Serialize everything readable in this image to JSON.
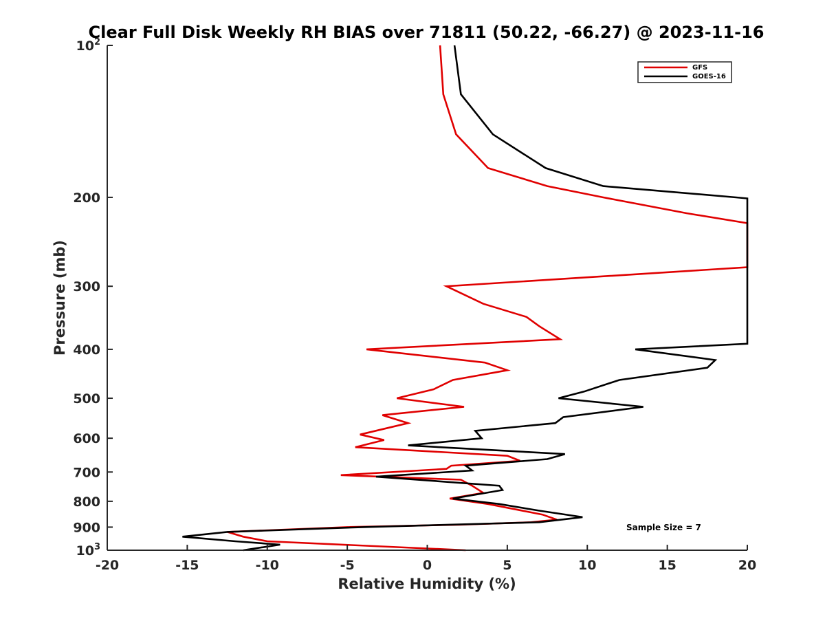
{
  "chart_data": {
    "type": "line",
    "title": "Clear Full Disk Weekly RH BIAS over 71811 (50.22, -66.27) @ 2023-11-16",
    "xlabel": "Relative Humidity (%)",
    "ylabel": "Pressure (mb)",
    "xlim": [
      -20,
      20
    ],
    "ylim": [
      100,
      1000
    ],
    "y_scale": "log",
    "y_reversed": true,
    "x_ticks": [
      -20,
      -15,
      -10,
      -5,
      0,
      5,
      10,
      15,
      20
    ],
    "x_tick_labels": [
      "-20",
      "-15",
      "-10",
      "-5",
      "0",
      "5",
      "10",
      "15",
      "20"
    ],
    "y_ticks": [
      100,
      200,
      300,
      400,
      500,
      600,
      700,
      800,
      900,
      1000
    ],
    "y_tick_labels": [
      {
        "base": "10",
        "sup": "2"
      },
      {
        "base": "200",
        "sup": ""
      },
      {
        "base": "300",
        "sup": ""
      },
      {
        "base": "400",
        "sup": ""
      },
      {
        "base": "500",
        "sup": ""
      },
      {
        "base": "600",
        "sup": ""
      },
      {
        "base": "700",
        "sup": ""
      },
      {
        "base": "800",
        "sup": ""
      },
      {
        "base": "900",
        "sup": ""
      },
      {
        "base": "10",
        "sup": "3"
      }
    ],
    "legend_position": "top-right",
    "annotation": "Sample Size = 7",
    "series": [
      {
        "name": "GFS",
        "color": "#e00000",
        "points": [
          [
            0.8,
            100
          ],
          [
            1.0,
            125
          ],
          [
            1.8,
            150
          ],
          [
            3.8,
            175
          ],
          [
            7.5,
            190
          ],
          [
            11.0,
            200
          ],
          [
            16.2,
            215
          ],
          [
            20.0,
            225
          ],
          [
            20.0,
            275
          ],
          [
            1.2,
            300
          ],
          [
            3.5,
            325
          ],
          [
            6.2,
            345
          ],
          [
            7.0,
            360
          ],
          [
            8.3,
            382
          ],
          [
            -3.8,
            400
          ],
          [
            3.6,
            425
          ],
          [
            5.0,
            440
          ],
          [
            1.6,
            460
          ],
          [
            0.4,
            480
          ],
          [
            -1.9,
            500
          ],
          [
            2.3,
            520
          ],
          [
            -2.8,
            540
          ],
          [
            -1.2,
            560
          ],
          [
            -4.2,
            590
          ],
          [
            -2.7,
            605
          ],
          [
            -4.5,
            625
          ],
          [
            5.0,
            650
          ],
          [
            5.8,
            665
          ],
          [
            1.5,
            680
          ],
          [
            1.2,
            690
          ],
          [
            -5.4,
            710
          ],
          [
            2.1,
            725
          ],
          [
            2.8,
            745
          ],
          [
            3.5,
            770
          ],
          [
            1.4,
            790
          ],
          [
            3.8,
            810
          ],
          [
            7.2,
            850
          ],
          [
            8.1,
            870
          ],
          [
            6.5,
            880
          ],
          [
            2.0,
            890
          ],
          [
            -5.0,
            900
          ],
          [
            -12.5,
            920
          ],
          [
            -11.5,
            940
          ],
          [
            -10.0,
            960
          ],
          [
            2.4,
            1000
          ]
        ]
      },
      {
        "name": "GOES-16",
        "color": "#000000",
        "points": [
          [
            1.7,
            100
          ],
          [
            2.1,
            125
          ],
          [
            4.1,
            150
          ],
          [
            7.4,
            175
          ],
          [
            11.0,
            190
          ],
          [
            19.3,
            200
          ],
          [
            20.0,
            201
          ],
          [
            20.0,
            390
          ],
          [
            13.0,
            400
          ],
          [
            18.0,
            420
          ],
          [
            17.5,
            435
          ],
          [
            12.0,
            460
          ],
          [
            9.8,
            485
          ],
          [
            8.2,
            500
          ],
          [
            13.5,
            520
          ],
          [
            8.5,
            545
          ],
          [
            8.0,
            560
          ],
          [
            3.0,
            580
          ],
          [
            3.4,
            600
          ],
          [
            -1.2,
            620
          ],
          [
            8.6,
            645
          ],
          [
            7.5,
            660
          ],
          [
            2.4,
            680
          ],
          [
            2.8,
            695
          ],
          [
            -3.2,
            715
          ],
          [
            4.5,
            745
          ],
          [
            4.7,
            760
          ],
          [
            1.6,
            790
          ],
          [
            4.5,
            810
          ],
          [
            7.0,
            835
          ],
          [
            9.7,
            860
          ],
          [
            7.0,
            880
          ],
          [
            -4.0,
            900
          ],
          [
            -12.5,
            920
          ],
          [
            -15.3,
            940
          ],
          [
            -12.0,
            960
          ],
          [
            -9.2,
            975
          ],
          [
            -11.5,
            1000
          ]
        ]
      }
    ]
  }
}
